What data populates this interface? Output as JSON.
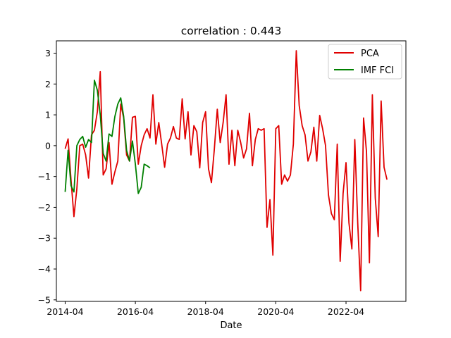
{
  "chart_data": {
    "type": "line",
    "title": "correlation : 0.443",
    "xlabel": "Date",
    "ylabel": "",
    "grid": false,
    "legend_position": "top-right",
    "xlim": [
      "2014-01-01",
      "2023-12-15"
    ],
    "ylim": [
      -5.05,
      3.4
    ],
    "x_ticks": [
      "2014-04",
      "2016-04",
      "2018-04",
      "2020-04",
      "2022-04"
    ],
    "y_ticks": [
      3,
      2,
      1,
      0,
      -1,
      -2,
      -3,
      -4,
      -5
    ],
    "series": [
      {
        "name": "PCA",
        "color": "#e00000",
        "x": [
          "2014-04",
          "2014-05",
          "2014-06",
          "2014-07",
          "2014-08",
          "2014-09",
          "2014-10",
          "2014-11",
          "2014-12",
          "2015-01",
          "2015-02",
          "2015-03",
          "2015-04",
          "2015-05",
          "2015-06",
          "2015-07",
          "2015-08",
          "2015-09",
          "2015-10",
          "2015-11",
          "2015-12",
          "2016-01",
          "2016-02",
          "2016-03",
          "2016-04",
          "2016-05",
          "2016-06",
          "2016-07",
          "2016-08",
          "2016-09",
          "2016-10",
          "2016-11",
          "2016-12",
          "2017-01",
          "2017-02",
          "2017-03",
          "2017-04",
          "2017-05",
          "2017-06",
          "2017-07",
          "2017-08",
          "2017-09",
          "2017-10",
          "2017-11",
          "2017-12",
          "2018-01",
          "2018-02",
          "2018-03",
          "2018-04",
          "2018-05",
          "2018-06",
          "2018-07",
          "2018-08",
          "2018-09",
          "2018-10",
          "2018-11",
          "2018-12",
          "2019-01",
          "2019-02",
          "2019-03",
          "2019-04",
          "2019-05",
          "2019-06",
          "2019-07",
          "2019-08",
          "2019-09",
          "2019-10",
          "2019-11",
          "2019-12",
          "2020-01",
          "2020-02",
          "2020-03",
          "2020-04",
          "2020-05",
          "2020-06",
          "2020-07",
          "2020-08",
          "2020-09",
          "2020-10",
          "2020-11",
          "2020-12",
          "2021-01",
          "2021-02",
          "2021-03",
          "2021-04",
          "2021-05",
          "2021-06",
          "2021-07",
          "2021-08",
          "2021-09",
          "2021-10",
          "2021-11",
          "2021-12",
          "2022-01",
          "2022-02",
          "2022-03",
          "2022-04",
          "2022-05",
          "2022-06",
          "2022-07",
          "2022-08",
          "2022-09",
          "2022-10",
          "2022-11",
          "2022-12",
          "2023-01",
          "2023-02",
          "2023-03",
          "2023-04",
          "2023-05",
          "2023-06"
        ],
        "values": [
          -0.1,
          0.22,
          -1.1,
          -2.3,
          -1.4,
          0.0,
          0.05,
          -0.3,
          -1.05,
          0.35,
          0.5,
          1.1,
          2.4,
          -0.95,
          -0.75,
          0.1,
          -1.25,
          -0.85,
          -0.5,
          1.35,
          0.9,
          -0.3,
          -0.5,
          0.92,
          0.95,
          -0.6,
          0.0,
          0.35,
          0.55,
          0.25,
          1.65,
          0.05,
          0.75,
          0.05,
          -0.7,
          0.05,
          0.25,
          0.62,
          0.25,
          0.2,
          1.52,
          0.22,
          1.1,
          -0.3,
          0.65,
          0.45,
          -0.72,
          0.75,
          1.1,
          -0.75,
          -1.2,
          -0.1,
          1.18,
          0.1,
          0.75,
          1.65,
          -0.6,
          0.5,
          -0.65,
          0.5,
          0.1,
          -0.4,
          -0.1,
          1.05,
          -0.65,
          0.2,
          0.55,
          0.5,
          0.55,
          -2.65,
          -1.75,
          -3.55,
          0.55,
          0.65,
          -1.25,
          -0.95,
          -1.15,
          -0.95,
          0.05,
          3.08,
          1.3,
          0.65,
          0.35,
          -0.5,
          -0.2,
          0.6,
          -0.5,
          0.98,
          0.55,
          0.0,
          -1.6,
          -2.2,
          -2.4,
          0.05,
          -3.75,
          -1.55,
          -0.55,
          -2.5,
          -3.35,
          0.2,
          -2.5,
          -4.7,
          0.9,
          -0.2,
          -3.8,
          1.65,
          -1.7,
          -2.95,
          1.45,
          -0.7,
          -1.1
        ]
      },
      {
        "name": "IMF FCI",
        "color": "#008000",
        "x": [
          "2014-04",
          "2014-05",
          "2014-06",
          "2014-07",
          "2014-08",
          "2014-09",
          "2014-10",
          "2014-11",
          "2014-12",
          "2015-01",
          "2015-02",
          "2015-03",
          "2015-04",
          "2015-05",
          "2015-06",
          "2015-07",
          "2015-08",
          "2015-09",
          "2015-10",
          "2015-11",
          "2015-12",
          "2016-01",
          "2016-02",
          "2016-03",
          "2016-04",
          "2016-05",
          "2016-06",
          "2016-07",
          "2016-08",
          "2016-09"
        ],
        "values": [
          -1.5,
          -0.15,
          -1.3,
          -1.5,
          0.0,
          0.2,
          0.3,
          -0.05,
          0.2,
          0.1,
          2.12,
          1.8,
          1.0,
          -0.25,
          -0.5,
          0.38,
          0.3,
          0.95,
          1.35,
          1.55,
          0.95,
          -0.15,
          -0.5,
          0.15,
          -0.6,
          -1.55,
          -1.35,
          -0.6,
          -0.65,
          -0.72
        ]
      }
    ]
  }
}
